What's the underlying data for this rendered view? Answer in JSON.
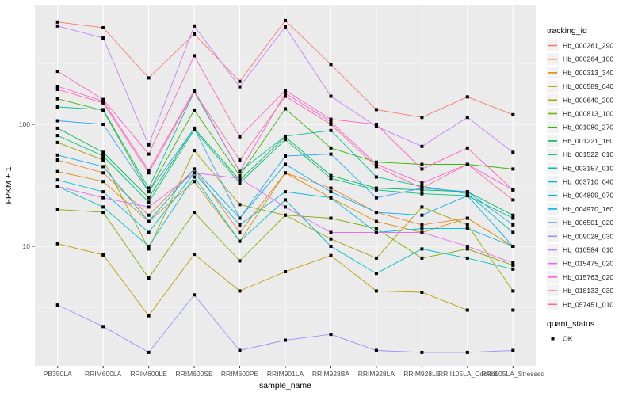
{
  "chart": {
    "x_axis_title": "sample_name",
    "y_axis_title": "FPKM + 1",
    "legend_title": "tracking_id",
    "legend2_title": "quant_status",
    "legend2_items": [
      {
        "label": "OK",
        "marker": "black-square"
      }
    ],
    "y_ticks": [
      {
        "label": "100",
        "value": 100
      },
      {
        "label": "10",
        "value": 10
      }
    ],
    "colors": {
      "panel_background": "#EBEBEB",
      "grid": "#FFFFFF",
      "tick_text": "#4D4D4D",
      "axis_title_text": "#000000",
      "legend_key_background": "#F2F2F2",
      "marker": "#000000"
    }
  },
  "chart_data": {
    "type": "line",
    "yscale": "log10",
    "ylim": [
      1,
      1000
    ],
    "grid": "on",
    "legend_position": "right",
    "point_marker": "black-square",
    "x": [
      "PB350LA",
      "RRIM600LA",
      "RRIM600LE",
      "RRIM600SE",
      "RRIM600PE",
      "RRIM901LA",
      "RRIM928BA",
      "RRIM928LA",
      "RRIM928LE",
      "RRII105LA_Control",
      "RRII105LA_Stressed"
    ],
    "series": [
      {
        "name": "Hb_000261_290",
        "color": "#F8766D",
        "values": [
          690,
          620,
          240,
          550,
          225,
          710,
          310,
          132,
          114,
          168,
          120
        ]
      },
      {
        "name": "Hb_000264_100",
        "color": "#EA8331",
        "values": [
          51,
          40,
          18,
          43,
          13,
          40,
          30,
          19,
          15,
          17,
          10
        ]
      },
      {
        "name": "Hb_000313_340",
        "color": "#D89000",
        "values": [
          41,
          34,
          16,
          34,
          11,
          40,
          25,
          16,
          13,
          17,
          10
        ]
      },
      {
        "name": "Hb_000589_040",
        "color": "#C09B00",
        "values": [
          10.5,
          8.5,
          2.7,
          8.6,
          4.3,
          6.2,
          8.4,
          4.3,
          4.2,
          3.0,
          3.0
        ]
      },
      {
        "name": "Hb_000640_200",
        "color": "#A3A500",
        "values": [
          71,
          51,
          9.5,
          61,
          22,
          18,
          11.5,
          8,
          21,
          15,
          4.3
        ]
      },
      {
        "name": "Hb_000813_100",
        "color": "#7CAE00",
        "values": [
          20,
          19,
          5.5,
          19,
          7.6,
          18,
          17,
          14,
          8,
          9.5,
          7
        ]
      },
      {
        "name": "Hb_001080_270",
        "color": "#39B600",
        "values": [
          162,
          130,
          28,
          131,
          38,
          134,
          64,
          49,
          47,
          47,
          43
        ]
      },
      {
        "name": "Hb_001221_160",
        "color": "#00BB4E",
        "values": [
          93,
          59,
          25,
          93,
          35,
          79,
          38,
          30,
          29,
          28,
          18
        ]
      },
      {
        "name": "Hb_001522_010",
        "color": "#00BF7D",
        "values": [
          81,
          55,
          23,
          90,
          33,
          75,
          36,
          29,
          27,
          26,
          17
        ]
      },
      {
        "name": "Hb_003157_010",
        "color": "#00C1A3",
        "values": [
          139,
          132,
          30,
          185,
          41,
          80,
          89,
          37,
          31,
          27,
          13
        ]
      },
      {
        "name": "Hb_003710_040",
        "color": "#00BFC4",
        "values": [
          31,
          21,
          10,
          37,
          11,
          24,
          10,
          6,
          9.5,
          8,
          6.5
        ]
      },
      {
        "name": "Hb_004899_070",
        "color": "#00BAE0",
        "values": [
          35,
          28,
          13,
          40,
          15,
          28,
          25,
          13,
          14,
          14,
          10
        ]
      },
      {
        "name": "Hb_004970_160",
        "color": "#00B0F6",
        "values": [
          56,
          45,
          16,
          43,
          17,
          47,
          28,
          19,
          18,
          26,
          10
        ]
      },
      {
        "name": "Hb_006501_020",
        "color": "#35A2FF",
        "values": [
          107,
          100,
          28,
          93,
          17,
          55,
          57,
          25,
          30,
          28,
          15
        ]
      },
      {
        "name": "Hb_009028_030",
        "color": "#9590FF",
        "values": [
          3.3,
          2.2,
          1.35,
          4.0,
          1.4,
          1.7,
          1.9,
          1.4,
          1.35,
          1.35,
          1.4
        ]
      },
      {
        "name": "Hb_010584_010",
        "color": "#C77CFF",
        "values": [
          640,
          510,
          68,
          640,
          203,
          630,
          170,
          96,
          66,
          114,
          59
        ]
      },
      {
        "name": "Hb_015475_020",
        "color": "#E76BF3",
        "values": [
          31,
          25,
          21,
          40,
          36,
          21,
          13,
          13,
          13,
          10,
          7.3
        ]
      },
      {
        "name": "Hb_015763_020",
        "color": "#FA62DB",
        "values": [
          205,
          155,
          42,
          190,
          41,
          180,
          105,
          47,
          33,
          47,
          29
        ]
      },
      {
        "name": "Hb_018133_030",
        "color": "#FF62BC",
        "values": [
          272,
          160,
          57,
          365,
          79,
          190,
          110,
          100,
          43,
          64,
          29
        ]
      },
      {
        "name": "Hb_057451_010",
        "color": "#FF6A98",
        "values": [
          193,
          150,
          40,
          185,
          51,
          170,
          100,
          45,
          30,
          47,
          24
        ]
      }
    ]
  }
}
